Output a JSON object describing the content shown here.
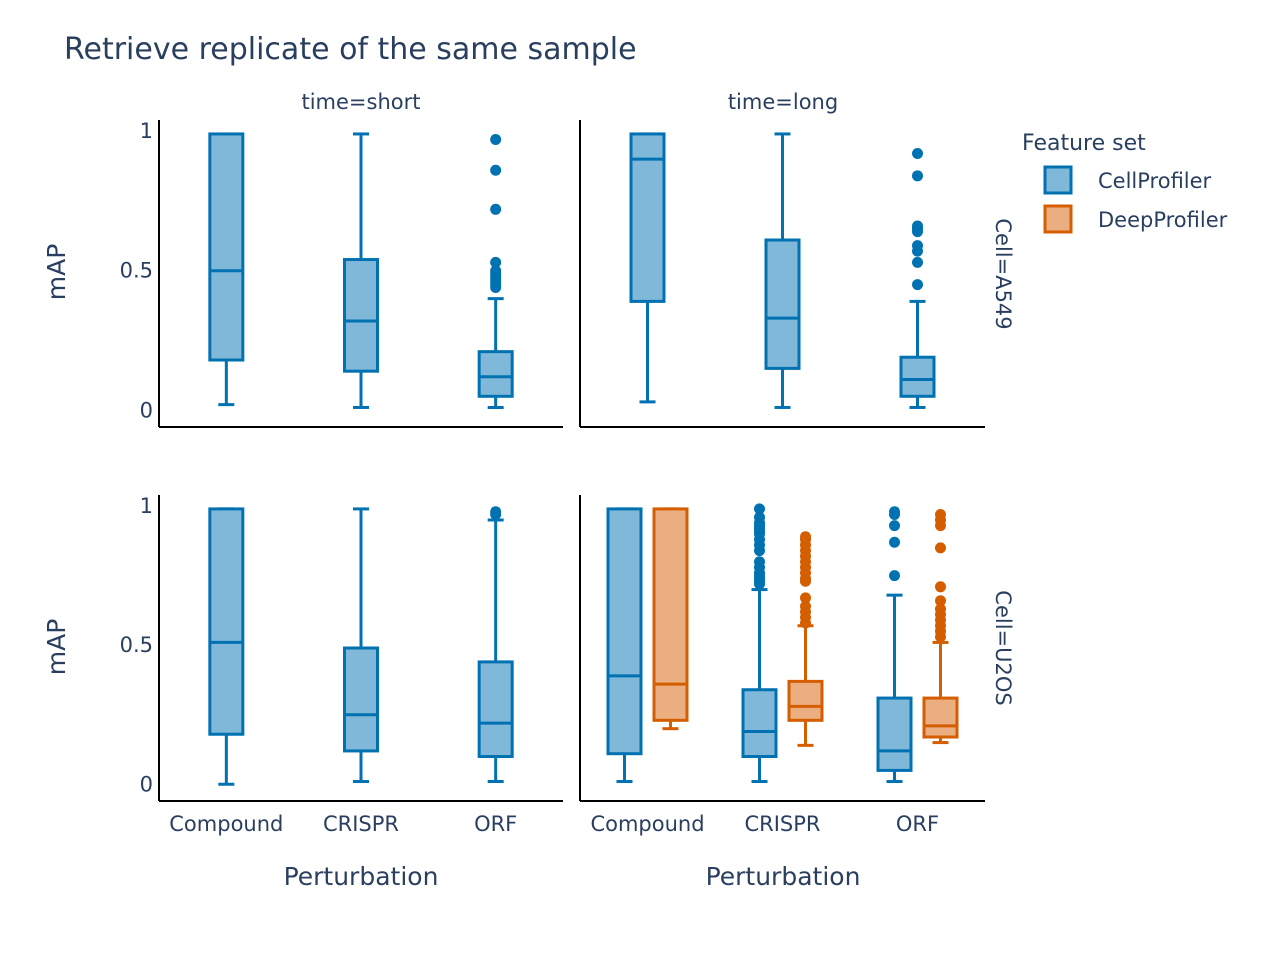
{
  "chart_data": {
    "type": "box",
    "title": "Retrieve replicate of the same sample",
    "xlabel": "Perturbation",
    "ylabel": "mAP",
    "categories": [
      "Compound",
      "CRISPR",
      "ORF"
    ],
    "yticks": [
      "0",
      "0.5",
      "1"
    ],
    "ylim": [
      -0.06,
      1.04
    ],
    "legend": {
      "title": "Feature set",
      "position": "top-right",
      "entries": [
        "CellProfiler",
        "DeepProfiler"
      ]
    },
    "series_colors": {
      "CellProfiler": {
        "line": "#0072b2",
        "fill": "#80b8d9"
      },
      "DeepProfiler": {
        "line": "#d55e00",
        "fill": "#eaae80"
      }
    },
    "facets": [
      {
        "col_label": "time=short",
        "row_label": "Cell=A549",
        "boxes": [
          {
            "series": "CellProfiler",
            "category": "Compound",
            "min": 0.02,
            "q1": 0.18,
            "median": 0.5,
            "q3": 0.99,
            "max": 0.99,
            "outliers": []
          },
          {
            "series": "CellProfiler",
            "category": "CRISPR",
            "min": 0.01,
            "q1": 0.14,
            "median": 0.32,
            "q3": 0.54,
            "max": 0.99,
            "outliers": []
          },
          {
            "series": "CellProfiler",
            "category": "ORF",
            "min": 0.01,
            "q1": 0.05,
            "median": 0.12,
            "q3": 0.21,
            "max": 0.4,
            "outliers": [
              0.44,
              0.45,
              0.46,
              0.47,
              0.48,
              0.49,
              0.5,
              0.53,
              0.72,
              0.86,
              0.97
            ]
          }
        ]
      },
      {
        "col_label": "time=long",
        "row_label": "Cell=A549",
        "boxes": [
          {
            "series": "CellProfiler",
            "category": "Compound",
            "min": 0.03,
            "q1": 0.39,
            "median": 0.9,
            "q3": 0.99,
            "max": 0.99,
            "outliers": []
          },
          {
            "series": "CellProfiler",
            "category": "CRISPR",
            "min": 0.01,
            "q1": 0.15,
            "median": 0.33,
            "q3": 0.61,
            "max": 0.99,
            "outliers": []
          },
          {
            "series": "CellProfiler",
            "category": "ORF",
            "min": 0.01,
            "q1": 0.05,
            "median": 0.11,
            "q3": 0.19,
            "max": 0.39,
            "outliers": [
              0.45,
              0.53,
              0.57,
              0.59,
              0.64,
              0.65,
              0.66,
              0.84,
              0.92
            ]
          }
        ]
      },
      {
        "col_label": "time=short",
        "row_label": "Cell=U2OS",
        "boxes": [
          {
            "series": "CellProfiler",
            "category": "Compound",
            "min": 0.0,
            "q1": 0.18,
            "median": 0.51,
            "q3": 0.99,
            "max": 0.99,
            "outliers": []
          },
          {
            "series": "CellProfiler",
            "category": "CRISPR",
            "min": 0.01,
            "q1": 0.12,
            "median": 0.25,
            "q3": 0.49,
            "max": 0.99,
            "outliers": []
          },
          {
            "series": "CellProfiler",
            "category": "ORF",
            "min": 0.01,
            "q1": 0.1,
            "median": 0.22,
            "q3": 0.44,
            "max": 0.95,
            "outliers": [
              0.97,
              0.98
            ]
          }
        ]
      },
      {
        "col_label": "time=long",
        "row_label": "Cell=U2OS",
        "boxes": [
          {
            "series": "CellProfiler",
            "category": "Compound",
            "min": 0.01,
            "q1": 0.11,
            "median": 0.39,
            "q3": 0.99,
            "max": 0.99,
            "outliers": []
          },
          {
            "series": "DeepProfiler",
            "category": "Compound",
            "min": 0.2,
            "q1": 0.23,
            "median": 0.36,
            "q3": 0.99,
            "max": 0.99,
            "outliers": []
          },
          {
            "series": "CellProfiler",
            "category": "CRISPR",
            "min": 0.01,
            "q1": 0.1,
            "median": 0.19,
            "q3": 0.34,
            "max": 0.7,
            "outliers": [
              0.72,
              0.73,
              0.74,
              0.75,
              0.76,
              0.78,
              0.8,
              0.84,
              0.86,
              0.88,
              0.9,
              0.91,
              0.92,
              0.93,
              0.94,
              0.96,
              0.99
            ]
          }
        ]
      }
    ],
    "extra_boxes_long_u2os": [
      {
        "series": "DeepProfiler",
        "category": "CRISPR",
        "min": 0.14,
        "q1": 0.23,
        "median": 0.28,
        "q3": 0.37,
        "max": 0.57,
        "outliers": [
          0.58,
          0.6,
          0.62,
          0.64,
          0.67,
          0.73,
          0.74,
          0.76,
          0.78,
          0.8,
          0.82,
          0.84,
          0.86,
          0.88,
          0.89
        ]
      },
      {
        "series": "CellProfiler",
        "category": "ORF",
        "min": 0.01,
        "q1": 0.05,
        "median": 0.12,
        "q3": 0.31,
        "max": 0.68,
        "outliers": [
          0.75,
          0.87,
          0.93,
          0.97,
          0.98
        ]
      },
      {
        "series": "DeepProfiler",
        "category": "ORF",
        "min": 0.15,
        "q1": 0.17,
        "median": 0.21,
        "q3": 0.31,
        "max": 0.51,
        "outliers": [
          0.53,
          0.55,
          0.57,
          0.59,
          0.61,
          0.63,
          0.66,
          0.71,
          0.85,
          0.93,
          0.95,
          0.97
        ]
      }
    ]
  }
}
